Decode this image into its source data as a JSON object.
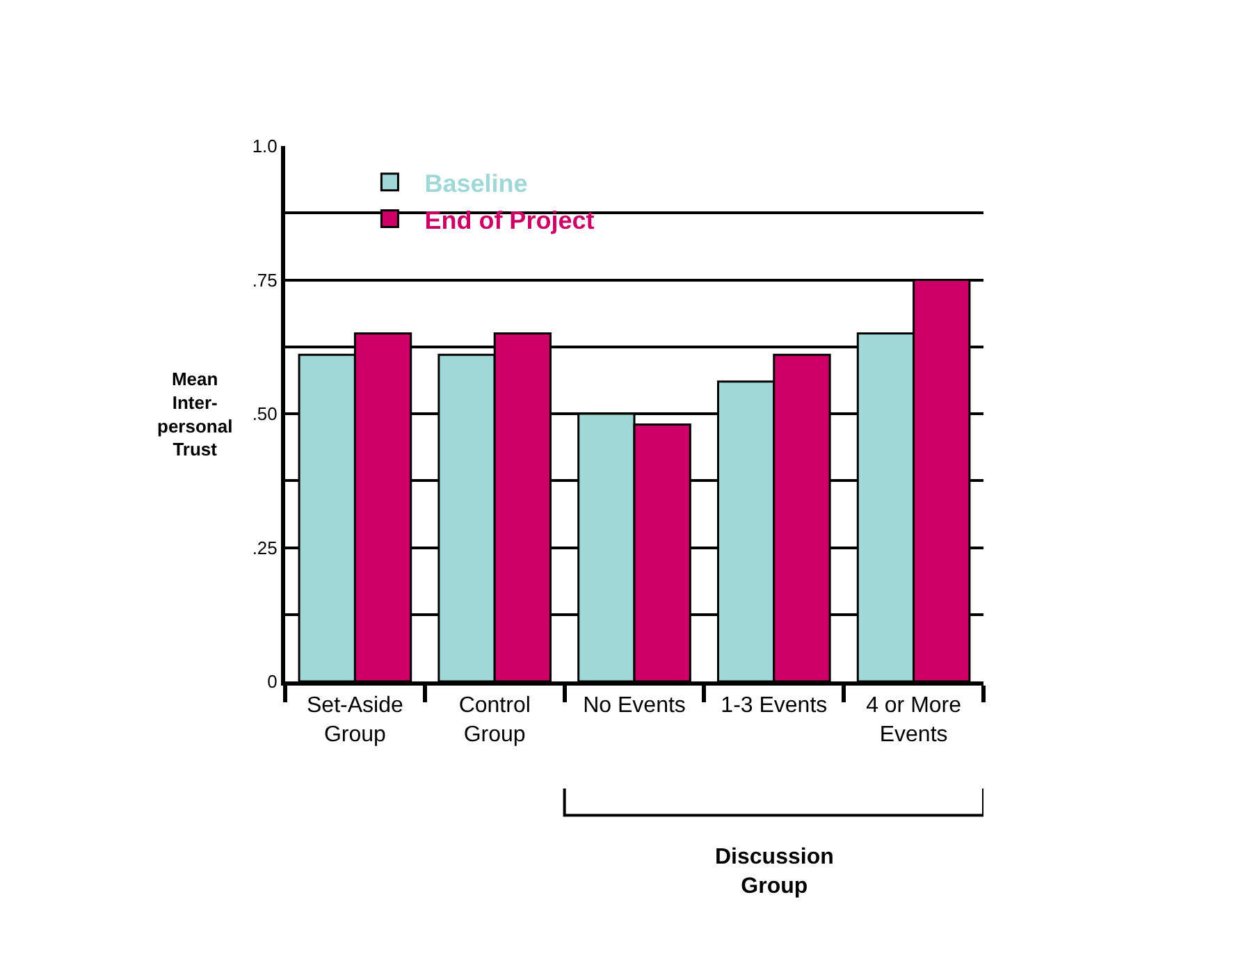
{
  "chart_data": {
    "type": "bar",
    "categories": [
      "Set-Aside\nGroup",
      "Control\nGroup",
      "No Events",
      "1-3 Events",
      "4 or More\nEvents"
    ],
    "series": [
      {
        "name": "Baseline",
        "color": "#a0d8d8",
        "values": [
          0.61,
          0.61,
          0.5,
          0.56,
          0.65
        ]
      },
      {
        "name": "End of Project",
        "color": "#cc0066",
        "values": [
          0.65,
          0.65,
          0.48,
          0.61,
          0.75
        ]
      }
    ],
    "ylabel": "Mean\nInter-\npersonal\nTrust",
    "annotations": [
      "Discussion\nGroup"
    ],
    "ylim": [
      0,
      1
    ],
    "yticks": [
      0,
      {
        "value": 0.125,
        "label": null
      },
      {
        "value": 0.25,
        "label": ".25"
      },
      {
        "value": 0.375,
        "label": null
      },
      {
        "value": 0.5,
        "label": ".50"
      },
      {
        "value": 0.625,
        "label": null
      },
      {
        "value": 0.75,
        "label": ".75"
      },
      {
        "value": 0.875,
        "label": null
      },
      {
        "value": 1,
        "label": "1.0"
      }
    ],
    "grid": "y",
    "legend": "top"
  }
}
